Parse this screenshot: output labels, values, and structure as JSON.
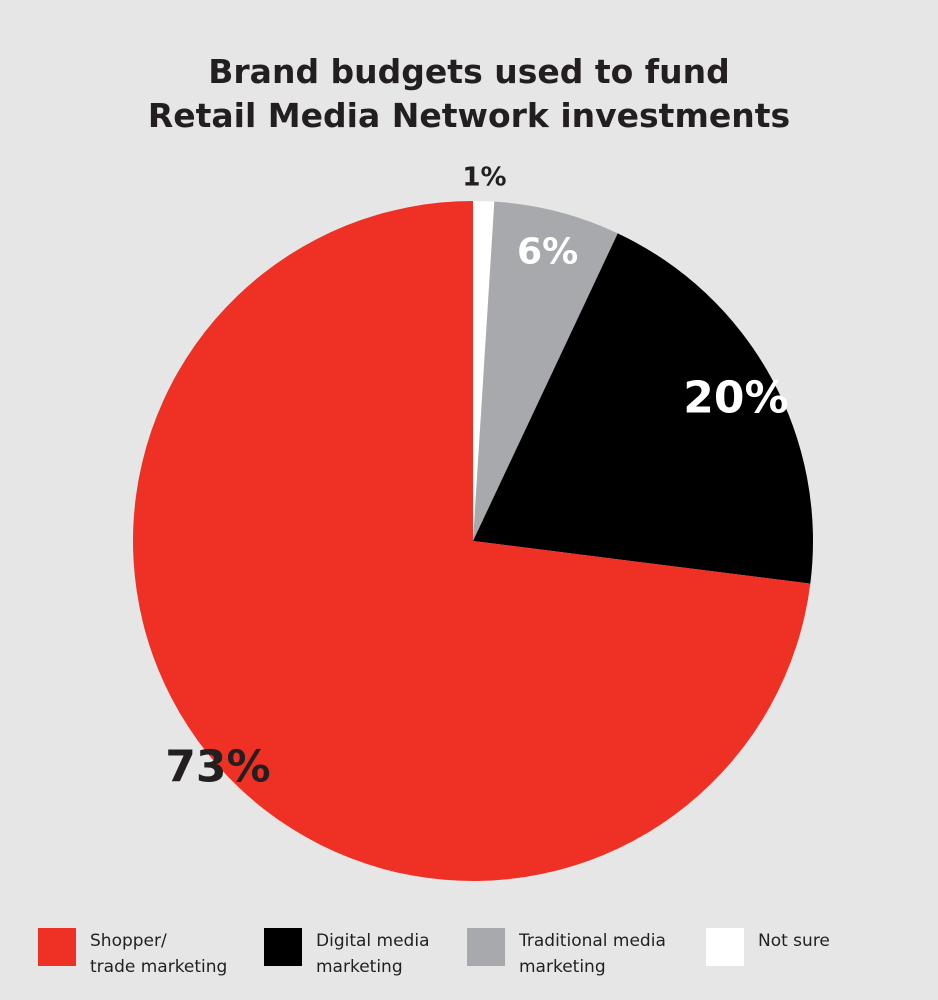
{
  "chart_data": {
    "type": "pie",
    "title": [
      "Brand budgets used to fund",
      "Retail Media Network investments"
    ],
    "slices": [
      {
        "value": 1,
        "label": "1%",
        "color": "#ffffff",
        "label_color": "#231f20"
      },
      {
        "value": 6,
        "label": "6%",
        "color": "#a7a9ac",
        "label_color": "#ffffff"
      },
      {
        "value": 20,
        "label": "20%",
        "color": "#000000",
        "label_color": "#ffffff"
      },
      {
        "value": 73,
        "label": "73%",
        "color": "#ee3124",
        "label_color": "#231f20"
      }
    ],
    "legend": [
      {
        "lines": [
          "Shopper/",
          "trade marketing"
        ],
        "color": "#ee3124"
      },
      {
        "lines": [
          "Digital media",
          "marketing"
        ],
        "color": "#000000"
      },
      {
        "lines": [
          "Traditional media",
          "marketing"
        ],
        "color": "#a7a9ac"
      },
      {
        "lines": [
          "Not sure"
        ],
        "color": "#ffffff"
      }
    ],
    "legend_position": "bottom"
  }
}
